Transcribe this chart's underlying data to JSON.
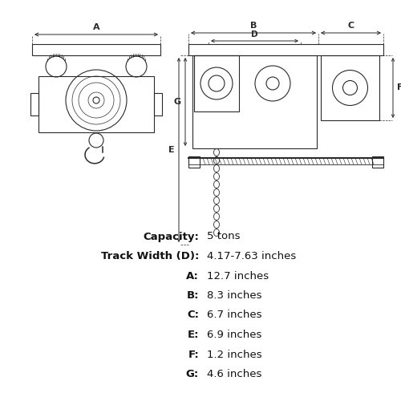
{
  "bg_color": "#ffffff",
  "line_color": "#2a2a2a",
  "specs": [
    {
      "label": "Capacity:",
      "value": "5 tons"
    },
    {
      "label": "Track Width (D):",
      "value": "4.17-7.63 inches"
    },
    {
      "label": "A:",
      "value": "12.7 inches"
    },
    {
      "label": "B:",
      "value": "8.3 inches"
    },
    {
      "label": "C:",
      "value": "6.7 inches"
    },
    {
      "label": "E:",
      "value": "6.9 inches"
    },
    {
      "label": "F:",
      "value": "1.2 inches"
    },
    {
      "label": "G:",
      "value": "4.6 inches"
    }
  ],
  "figsize": [
    5.0,
    5.0
  ],
  "dpi": 100
}
